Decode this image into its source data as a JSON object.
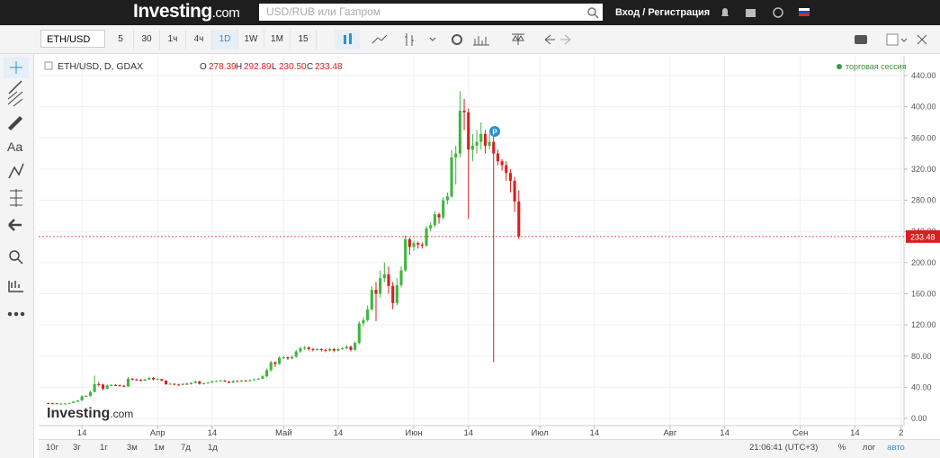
{
  "header": {
    "logo": "Investing",
    "logo_suffix": ".com",
    "search_placeholder": "USD/RUB или Газпром",
    "login": "Вход / Регистрация"
  },
  "toolbar": {
    "symbol": "ETH/USD",
    "intervals": [
      "5",
      "30",
      "1ч",
      "4ч",
      "1D",
      "1W",
      "1М",
      "15"
    ],
    "active_interval": "1D"
  },
  "bottom_bar": {
    "ranges": [
      "10г",
      "3г",
      "1г",
      "3м",
      "1м",
      "7д",
      "1д"
    ],
    "time": "21:06:41 (UTC+3)",
    "options": [
      "%",
      "лог",
      "авто"
    ]
  },
  "chart_data": {
    "type": "candlestick",
    "legend": {
      "symbol": "ETH/USD, D, GDAX",
      "o_key": "O",
      "o": "278.39",
      "h_key": "H",
      "h": "292.89",
      "l_key": "L",
      "l": "230.50",
      "c_key": "C",
      "c": "233.48"
    },
    "session": "торговая сессия",
    "marker": "P",
    "watermark": "Investing",
    "watermark_suffix": ".com",
    "up_color": "#3cb63c",
    "down_color": "#d91e1e",
    "grid": true,
    "x": [
      5,
      6,
      7,
      8,
      9,
      10,
      11,
      12,
      13,
      14,
      15,
      16,
      17,
      18,
      19,
      20,
      21,
      22,
      23,
      24,
      25,
      26,
      27,
      28,
      29,
      30,
      31,
      32,
      33,
      34,
      35,
      36,
      37,
      38,
      39,
      40,
      41,
      42,
      43,
      44,
      45,
      46,
      47,
      48,
      49,
      50,
      51,
      52,
      53,
      54,
      55,
      56,
      57,
      58,
      59,
      60,
      61,
      62,
      63,
      64,
      65,
      66,
      67,
      68,
      69,
      70,
      71,
      72,
      73,
      74,
      75,
      76,
      77,
      78,
      79,
      80,
      81,
      82,
      83,
      84,
      85,
      86,
      87,
      88,
      89,
      90,
      91,
      92,
      93,
      94,
      95,
      96,
      97,
      98,
      99,
      100,
      101,
      102,
      103,
      104,
      105,
      106,
      107,
      108,
      109,
      110,
      111,
      112,
      113,
      114,
      115,
      116,
      117
    ],
    "open": [
      19.8,
      19.5,
      19.4,
      18.9,
      19.0,
      19.1,
      19.8,
      21.5,
      23.0,
      28.5,
      28.9,
      34.0,
      44.0,
      43.5,
      38.0,
      42.5,
      43.0,
      42.5,
      42.0,
      41.0,
      51.0,
      50.0,
      49.5,
      48.5,
      50.0,
      52.0,
      50.0,
      50.5,
      48.5,
      44.0,
      44.5,
      43.5,
      43.0,
      44.5,
      44.0,
      45.5,
      47.5,
      44.5,
      45.0,
      46.0,
      47.5,
      48.0,
      48.5,
      47.5,
      46.0,
      48.0,
      47.5,
      48.5,
      48.0,
      49.0,
      50.0,
      51.0,
      54.0,
      62.0,
      72.0,
      70.0,
      78.0,
      78.5,
      77.0,
      79.0,
      86.0,
      90.0,
      91.0,
      89.0,
      88.0,
      89.0,
      88.0,
      87.0,
      89.0,
      87.0,
      89.0,
      90.0,
      92.0,
      88.0,
      97.0,
      122.0,
      126.0,
      140.0,
      165.0,
      160.0,
      180.0,
      185.0,
      170.0,
      148.0,
      171.0,
      190.0,
      230.0,
      220.0,
      225.0,
      223.0,
      222.0,
      244.0,
      248.0,
      262.0,
      258.0,
      280.0,
      285.0,
      335.0,
      340.0,
      395.0,
      393.0,
      345.0,
      350.0,
      355.0,
      365.0,
      350.0,
      355.0,
      340.0,
      330.0,
      325.0,
      315.0,
      305.0,
      278.39
    ],
    "high": [
      20.3,
      20.0,
      19.8,
      19.5,
      19.6,
      20.2,
      22.0,
      23.8,
      29.5,
      30.0,
      35.5,
      55.0,
      47.0,
      44.5,
      43.5,
      44.0,
      44.0,
      43.5,
      43.0,
      53.0,
      52.0,
      51.0,
      50.5,
      51.0,
      53.5,
      53.0,
      51.5,
      51.0,
      49.0,
      45.5,
      45.0,
      44.5,
      45.0,
      45.5,
      46.5,
      48.5,
      48.5,
      46.0,
      47.0,
      48.5,
      49.0,
      49.5,
      49.5,
      48.0,
      49.0,
      49.0,
      49.5,
      49.5,
      50.0,
      51.0,
      52.0,
      55.5,
      64.0,
      74.0,
      73.5,
      79.5,
      80.0,
      79.5,
      80.5,
      88.0,
      92.0,
      93.0,
      92.5,
      90.5,
      90.5,
      90.0,
      89.5,
      90.5,
      90.5,
      90.5,
      91.5,
      94.0,
      93.5,
      99.0,
      125.0,
      130.0,
      145.0,
      170.0,
      175.0,
      190.0,
      200.0,
      195.0,
      175.0,
      180.0,
      195.0,
      235.0,
      232.0,
      228.0,
      227.0,
      226.0,
      247.0,
      252.0,
      266.0,
      264.0,
      284.0,
      290.0,
      345.0,
      350.0,
      420.0,
      410.0,
      398.0,
      365.0,
      370.0,
      380.0,
      370.0,
      365.0,
      362.0,
      345.0,
      333.0,
      330.0,
      320.0,
      310.0,
      292.89
    ],
    "low": [
      19.0,
      19.0,
      18.5,
      18.5,
      18.7,
      18.9,
      19.5,
      21.0,
      22.5,
      27.5,
      28.0,
      33.5,
      41.0,
      36.0,
      37.5,
      41.5,
      41.5,
      41.0,
      40.0,
      40.5,
      48.5,
      48.5,
      47.5,
      48.0,
      49.5,
      49.0,
      49.0,
      47.5,
      43.0,
      43.5,
      42.5,
      42.0,
      42.5,
      43.5,
      43.5,
      45.0,
      43.5,
      44.0,
      44.5,
      45.5,
      47.0,
      47.5,
      47.0,
      45.0,
      45.5,
      47.0,
      47.0,
      47.5,
      47.5,
      48.5,
      49.5,
      50.5,
      53.0,
      60.0,
      66.0,
      69.0,
      76.0,
      75.0,
      76.0,
      78.0,
      84.0,
      88.0,
      87.0,
      86.0,
      87.0,
      86.0,
      85.0,
      86.0,
      85.0,
      86.0,
      88.0,
      89.0,
      86.0,
      87.0,
      95.0,
      118.0,
      124.0,
      138.0,
      125.0,
      155.0,
      175.0,
      160.0,
      140.0,
      145.0,
      168.0,
      188.0,
      210.0,
      215.0,
      218.0,
      218.0,
      220.0,
      240.0,
      245.0,
      250.0,
      255.0,
      275.0,
      283.0,
      300.0,
      335.0,
      370.0,
      256.0,
      330.0,
      340.0,
      345.0,
      340.0,
      345.0,
      72.0,
      325.0,
      318.0,
      305.0,
      290.0,
      265.0,
      230.5
    ],
    "close": [
      19.5,
      19.4,
      18.9,
      19.0,
      19.1,
      19.8,
      21.5,
      23.0,
      28.5,
      28.9,
      34.0,
      44.0,
      43.5,
      38.0,
      42.5,
      43.0,
      42.5,
      42.0,
      41.0,
      51.0,
      50.0,
      49.5,
      48.5,
      50.0,
      52.0,
      50.0,
      50.5,
      48.5,
      44.0,
      44.5,
      43.5,
      43.0,
      44.5,
      44.0,
      45.5,
      47.5,
      44.5,
      45.0,
      46.0,
      47.5,
      48.0,
      48.5,
      47.5,
      46.0,
      48.0,
      47.5,
      48.5,
      48.0,
      49.0,
      50.0,
      51.0,
      54.0,
      62.0,
      72.0,
      70.0,
      78.0,
      78.5,
      77.0,
      79.0,
      86.0,
      90.0,
      91.0,
      89.0,
      88.0,
      89.0,
      88.0,
      87.0,
      89.0,
      87.0,
      89.0,
      90.0,
      92.0,
      88.0,
      97.0,
      122.0,
      126.0,
      140.0,
      165.0,
      160.0,
      180.0,
      185.0,
      170.0,
      148.0,
      171.0,
      190.0,
      230.0,
      220.0,
      225.0,
      223.0,
      222.0,
      244.0,
      248.0,
      262.0,
      258.0,
      280.0,
      285.0,
      335.0,
      340.0,
      395.0,
      393.0,
      345.0,
      350.0,
      355.0,
      365.0,
      350.0,
      355.0,
      340.0,
      330.0,
      325.0,
      315.0,
      305.0,
      278.39,
      233.48
    ],
    "xlim": [
      2.7,
      208.7
    ],
    "xticks": [
      {
        "value": 13,
        "label": "14"
      },
      {
        "value": 31,
        "label": "Апр"
      },
      {
        "value": 44,
        "label": "14"
      },
      {
        "value": 61,
        "label": "Май"
      },
      {
        "value": 74,
        "label": "14"
      },
      {
        "value": 92,
        "label": "Июн"
      },
      {
        "value": 105,
        "label": "14"
      },
      {
        "value": 122,
        "label": "Июл"
      },
      {
        "value": 135,
        "label": "14"
      },
      {
        "value": 153,
        "label": "Авг"
      },
      {
        "value": 166,
        "label": "14"
      },
      {
        "value": 184,
        "label": "Сен"
      },
      {
        "value": 197,
        "label": "14"
      },
      {
        "value": 208,
        "label": "2"
      }
    ],
    "ylim": [
      -9.2,
      465.4
    ],
    "yticks": [
      {
        "value": 0,
        "label": "0.00"
      },
      {
        "value": 40,
        "label": "40.00"
      },
      {
        "value": 80,
        "label": "80.00"
      },
      {
        "value": 120,
        "label": "120.00"
      },
      {
        "value": 160,
        "label": "160.00"
      },
      {
        "value": 200,
        "label": "200.00"
      },
      {
        "value": 240,
        "label": "240.00"
      },
      {
        "value": 280,
        "label": "280.00"
      },
      {
        "value": 320,
        "label": "320.00"
      },
      {
        "value": 360,
        "label": "360.00"
      },
      {
        "value": 400,
        "label": "400.00"
      },
      {
        "value": 440,
        "label": "440.00"
      }
    ]
  }
}
